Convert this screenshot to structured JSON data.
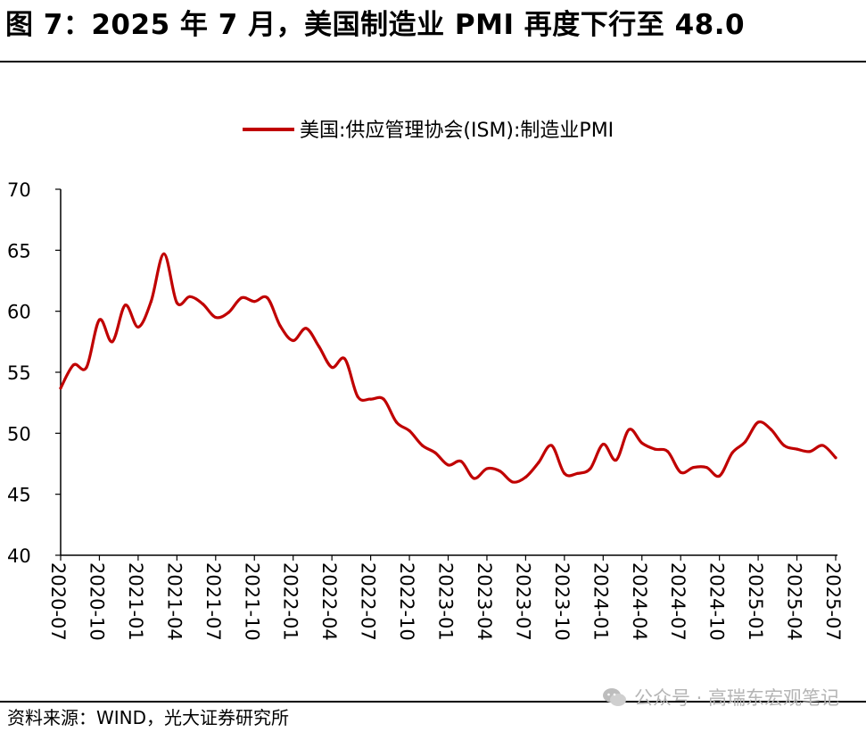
{
  "figure": {
    "title": "图 7：2025 年 7 月，美国制造业 PMI 再度下行至 48.0",
    "source": "资料来源：WIND，光大证券研究所",
    "watermark": "公众号 · 高瑞东宏观笔记",
    "watermark_icon": "wechat-icon"
  },
  "chart_data": {
    "type": "line",
    "title": "",
    "xlabel": "",
    "ylabel": "",
    "ylim": [
      40,
      70
    ],
    "yticks": [
      40,
      45,
      50,
      55,
      60,
      65,
      70
    ],
    "grid": false,
    "legend_position": "top-center",
    "xtick_labels": [
      "2020-07",
      "2020-10",
      "2021-01",
      "2021-04",
      "2021-07",
      "2021-10",
      "2022-01",
      "2022-04",
      "2022-07",
      "2022-10",
      "2023-01",
      "2023-04",
      "2023-07",
      "2023-10",
      "2024-01",
      "2024-04",
      "2024-07",
      "2024-10",
      "2025-01",
      "2025-04",
      "2025-07"
    ],
    "x": [
      "2020-07",
      "2020-08",
      "2020-09",
      "2020-10",
      "2020-11",
      "2020-12",
      "2021-01",
      "2021-02",
      "2021-03",
      "2021-04",
      "2021-05",
      "2021-06",
      "2021-07",
      "2021-08",
      "2021-09",
      "2021-10",
      "2021-11",
      "2021-12",
      "2022-01",
      "2022-02",
      "2022-03",
      "2022-04",
      "2022-05",
      "2022-06",
      "2022-07",
      "2022-08",
      "2022-09",
      "2022-10",
      "2022-11",
      "2022-12",
      "2023-01",
      "2023-02",
      "2023-03",
      "2023-04",
      "2023-05",
      "2023-06",
      "2023-07",
      "2023-08",
      "2023-09",
      "2023-10",
      "2023-11",
      "2023-12",
      "2024-01",
      "2024-02",
      "2024-03",
      "2024-04",
      "2024-05",
      "2024-06",
      "2024-07",
      "2024-08",
      "2024-09",
      "2024-10",
      "2024-11",
      "2024-12",
      "2025-01",
      "2025-02",
      "2025-03",
      "2025-04",
      "2025-05",
      "2025-06",
      "2025-07"
    ],
    "series": [
      {
        "name": "美国:供应管理协会(ISM):制造业PMI",
        "color": "#c00000",
        "values": [
          53.7,
          55.6,
          55.4,
          59.3,
          57.5,
          60.5,
          58.7,
          60.8,
          64.7,
          60.7,
          61.2,
          60.6,
          59.5,
          59.9,
          61.1,
          60.8,
          61.1,
          58.8,
          57.6,
          58.6,
          57.1,
          55.4,
          56.1,
          53.0,
          52.8,
          52.8,
          50.9,
          50.2,
          49.0,
          48.4,
          47.4,
          47.7,
          46.3,
          47.1,
          46.9,
          46.0,
          46.4,
          47.6,
          49.0,
          46.7,
          46.7,
          47.1,
          49.1,
          47.8,
          50.3,
          49.2,
          48.7,
          48.5,
          46.8,
          47.2,
          47.2,
          46.5,
          48.4,
          49.3,
          50.9,
          50.3,
          49.0,
          48.7,
          48.5,
          49.0,
          48.0
        ]
      }
    ]
  }
}
